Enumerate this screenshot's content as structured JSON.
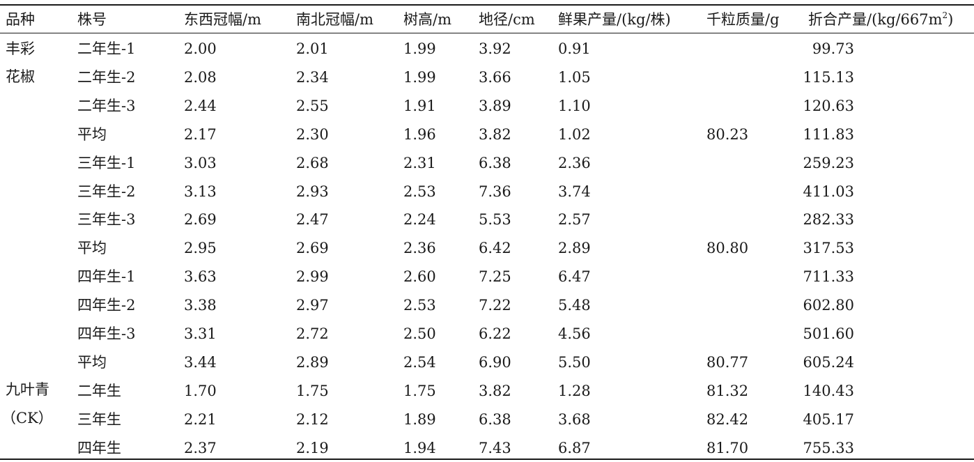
{
  "table": {
    "headers": [
      "品种",
      "株号",
      "东西冠幅/m",
      "南北冠幅/m",
      "树高/m",
      "地径/cm",
      "鲜果产量/(kg/株)",
      "千粒质量/g",
      "折合产量/(kg/667m",
      "2",
      ")"
    ],
    "groups": [
      {
        "variety_line1": "丰彩",
        "variety_line2": "花椒"
      },
      {
        "variety_line1": "九叶青",
        "variety_line2": "（CK）"
      }
    ],
    "rows": [
      {
        "id": "二年生-1",
        "ew": "2.00",
        "ns": "2.01",
        "h": "1.99",
        "d": "3.92",
        "fruit": "0.91",
        "kw": "",
        "yield": "99.73"
      },
      {
        "id": "二年生-2",
        "ew": "2.08",
        "ns": "2.34",
        "h": "1.99",
        "d": "3.66",
        "fruit": "1.05",
        "kw": "",
        "yield": "115.13"
      },
      {
        "id": "二年生-3",
        "ew": "2.44",
        "ns": "2.55",
        "h": "1.91",
        "d": "3.89",
        "fruit": "1.10",
        "kw": "",
        "yield": "120.63"
      },
      {
        "id": "平均",
        "ew": "2.17",
        "ns": "2.30",
        "h": "1.96",
        "d": "3.82",
        "fruit": "1.02",
        "kw": "80.23",
        "yield": "111.83"
      },
      {
        "id": "三年生-1",
        "ew": "3.03",
        "ns": "2.68",
        "h": "2.31",
        "d": "6.38",
        "fruit": "2.36",
        "kw": "",
        "yield": "259.23"
      },
      {
        "id": "三年生-2",
        "ew": "3.13",
        "ns": "2.93",
        "h": "2.53",
        "d": "7.36",
        "fruit": "3.74",
        "kw": "",
        "yield": "411.03"
      },
      {
        "id": "三年生-3",
        "ew": "2.69",
        "ns": "2.47",
        "h": "2.24",
        "d": "5.53",
        "fruit": "2.57",
        "kw": "",
        "yield": "282.33"
      },
      {
        "id": "平均",
        "ew": "2.95",
        "ns": "2.69",
        "h": "2.36",
        "d": "6.42",
        "fruit": "2.89",
        "kw": "80.80",
        "yield": "317.53"
      },
      {
        "id": "四年生-1",
        "ew": "3.63",
        "ns": "2.99",
        "h": "2.60",
        "d": "7.25",
        "fruit": "6.47",
        "kw": "",
        "yield": "711.33"
      },
      {
        "id": "四年生-2",
        "ew": "3.38",
        "ns": "2.97",
        "h": "2.53",
        "d": "7.22",
        "fruit": "5.48",
        "kw": "",
        "yield": "602.80"
      },
      {
        "id": "四年生-3",
        "ew": "3.31",
        "ns": "2.72",
        "h": "2.50",
        "d": "6.22",
        "fruit": "4.56",
        "kw": "",
        "yield": "501.60"
      },
      {
        "id": "平均",
        "ew": "3.44",
        "ns": "2.89",
        "h": "2.54",
        "d": "6.90",
        "fruit": "5.50",
        "kw": "80.77",
        "yield": "605.24"
      },
      {
        "id": "二年生",
        "ew": "1.70",
        "ns": "1.75",
        "h": "1.75",
        "d": "3.82",
        "fruit": "1.28",
        "kw": "81.32",
        "yield": "140.43"
      },
      {
        "id": "三年生",
        "ew": "2.21",
        "ns": "2.12",
        "h": "1.89",
        "d": "6.38",
        "fruit": "3.68",
        "kw": "82.42",
        "yield": "405.17"
      },
      {
        "id": "四年生",
        "ew": "2.37",
        "ns": "2.19",
        "h": "1.94",
        "d": "7.43",
        "fruit": "6.87",
        "kw": "81.70",
        "yield": "755.33"
      }
    ]
  }
}
